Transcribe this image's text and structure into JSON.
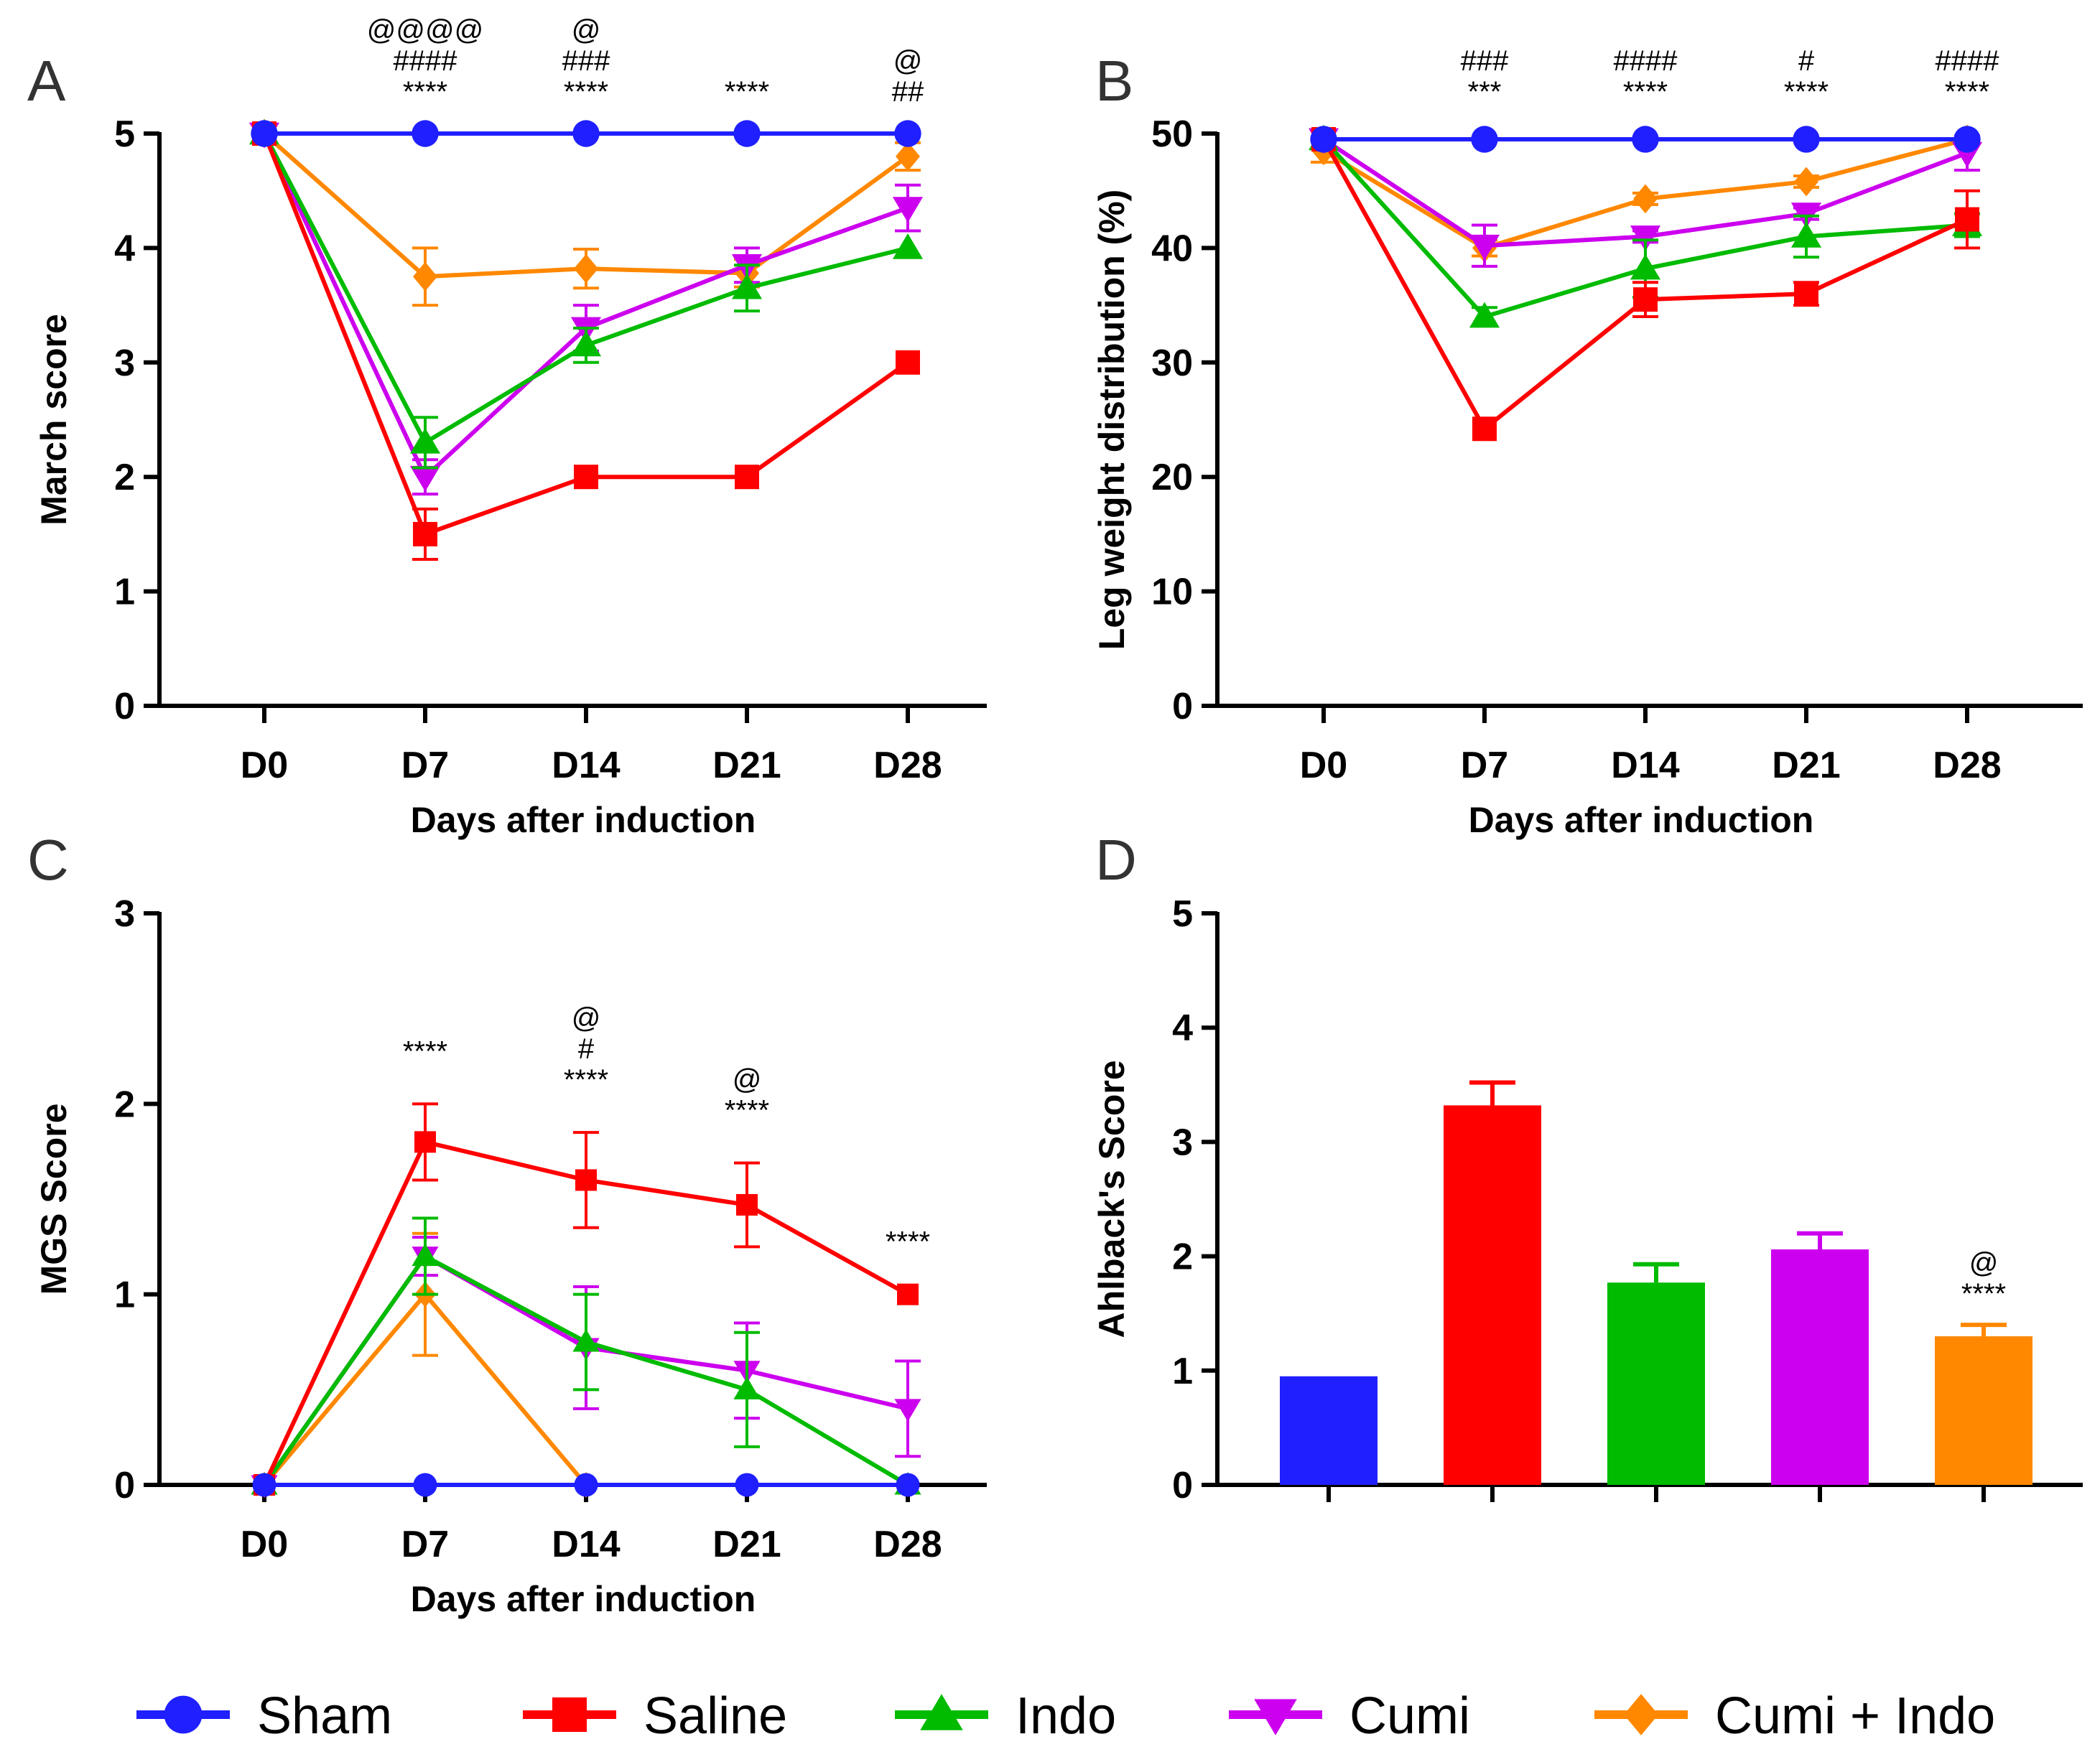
{
  "figure": {
    "legend": [
      {
        "name": "Sham",
        "color": "#1f1fff",
        "marker": "circle"
      },
      {
        "name": "Saline",
        "color": "#ff0000",
        "marker": "square"
      },
      {
        "name": "Indo",
        "color": "#00bb00",
        "marker": "triangle-up"
      },
      {
        "name": "Cumi",
        "color": "#cc00ee",
        "marker": "triangle-down"
      },
      {
        "name": "Cumi + Indo",
        "color": "#ff8800",
        "marker": "diamond"
      }
    ]
  },
  "chart_data": [
    {
      "panel": "A",
      "type": "line",
      "categories": [
        "D0",
        "D7",
        "D14",
        "D21",
        "D28"
      ],
      "xlabel": "Days after induction",
      "ylabel": "March score",
      "ylim": [
        0,
        5
      ],
      "yticks": [
        0,
        1,
        2,
        3,
        4,
        5
      ],
      "series": [
        {
          "name": "Sham",
          "values": [
            5,
            5,
            5,
            5,
            5
          ],
          "errors": [
            0,
            0,
            0,
            0,
            0
          ]
        },
        {
          "name": "Saline",
          "values": [
            5,
            1.5,
            2,
            2,
            3
          ],
          "errors": [
            0,
            0.22,
            0,
            0,
            0
          ]
        },
        {
          "name": "Indo",
          "values": [
            5,
            2.3,
            3.15,
            3.65,
            4
          ],
          "errors": [
            0,
            0.22,
            0.15,
            0.2,
            0
          ]
        },
        {
          "name": "Cumi",
          "values": [
            5,
            2.0,
            3.3,
            3.85,
            4.35
          ],
          "errors": [
            0,
            0.15,
            0.2,
            0.15,
            0.2
          ]
        },
        {
          "name": "Cumi + Indo",
          "values": [
            5,
            3.75,
            3.82,
            3.78,
            4.8
          ],
          "errors": [
            0,
            0.25,
            0.17,
            0.12,
            0.12
          ]
        }
      ],
      "annotations": [
        {
          "category": "D7",
          "lines": [
            "@@@@",
            "####",
            "****"
          ]
        },
        {
          "category": "D14",
          "lines": [
            "@",
            "###",
            "****"
          ]
        },
        {
          "category": "D21",
          "lines": [
            "****"
          ]
        },
        {
          "category": "D28",
          "lines": [
            "@",
            "##"
          ]
        }
      ]
    },
    {
      "panel": "B",
      "type": "line",
      "categories": [
        "D0",
        "D7",
        "D14",
        "D21",
        "D28"
      ],
      "xlabel": "Days after induction",
      "ylabel": "Leg weight distribution (%)",
      "ylim": [
        0,
        50
      ],
      "yticks": [
        0,
        10,
        20,
        30,
        40,
        50
      ],
      "series": [
        {
          "name": "Sham",
          "values": [
            49.5,
            49.5,
            49.5,
            49.5,
            49.5
          ],
          "errors": [
            0,
            0,
            0,
            0,
            0
          ]
        },
        {
          "name": "Saline",
          "values": [
            49.5,
            24.2,
            35.5,
            36,
            42.5
          ],
          "errors": [
            0,
            0,
            1.5,
            1,
            2.5
          ]
        },
        {
          "name": "Indo",
          "values": [
            49.5,
            34,
            38.2,
            41,
            42
          ],
          "errors": [
            0,
            0.8,
            2.5,
            1.8,
            1
          ]
        },
        {
          "name": "Cumi",
          "values": [
            49.5,
            40.2,
            41,
            43,
            48.3
          ],
          "errors": [
            0,
            1.8,
            0.5,
            0.5,
            1.5
          ]
        },
        {
          "name": "Cumi + Indo",
          "values": [
            48.5,
            40,
            44.3,
            45.8,
            49.5
          ],
          "errors": [
            1,
            0.7,
            0.5,
            0.5,
            0
          ]
        }
      ],
      "annotations": [
        {
          "category": "D7",
          "lines": [
            "###",
            "***"
          ]
        },
        {
          "category": "D14",
          "lines": [
            "####",
            "****"
          ]
        },
        {
          "category": "D21",
          "lines": [
            "#",
            "****"
          ]
        },
        {
          "category": "D28",
          "lines": [
            "####",
            "****"
          ]
        }
      ]
    },
    {
      "panel": "C",
      "type": "line",
      "categories": [
        "D0",
        "D7",
        "D14",
        "D21",
        "D28"
      ],
      "xlabel": "Days after induction",
      "ylabel": "MGS Score",
      "ylim": [
        0,
        3
      ],
      "yticks": [
        0,
        1,
        2,
        3
      ],
      "series": [
        {
          "name": "Sham",
          "values": [
            0,
            0,
            0,
            0,
            0
          ],
          "errors": [
            0,
            0,
            0,
            0,
            0
          ]
        },
        {
          "name": "Saline",
          "values": [
            0,
            1.8,
            1.6,
            1.47,
            1.0
          ],
          "errors": [
            0,
            0.2,
            0.25,
            0.22,
            0
          ]
        },
        {
          "name": "Indo",
          "values": [
            0,
            1.2,
            0.75,
            0.5,
            0
          ],
          "errors": [
            0,
            0.2,
            0.25,
            0.3,
            0
          ]
        },
        {
          "name": "Cumi",
          "values": [
            0,
            1.2,
            0.72,
            0.6,
            0.4
          ],
          "errors": [
            0,
            0.1,
            0.32,
            0.25,
            0.25
          ]
        },
        {
          "name": "Cumi + Indo",
          "values": [
            0,
            1.0,
            0,
            null,
            null
          ],
          "errors": [
            0,
            0.32,
            0,
            0,
            0
          ]
        }
      ],
      "annotations": [
        {
          "category": "D7",
          "lines": [
            "****"
          ]
        },
        {
          "category": "D14",
          "lines": [
            "@",
            "#",
            "****"
          ]
        },
        {
          "category": "D21",
          "lines": [
            "@",
            "****"
          ]
        },
        {
          "category": "D28",
          "lines": [
            "****"
          ]
        }
      ]
    },
    {
      "panel": "D",
      "type": "bar",
      "categories": [
        "Sham",
        "Saline",
        "Indo",
        "Cumi",
        "Cumi + Indo"
      ],
      "ylabel": "Ahlback's Score",
      "ylim": [
        0,
        5
      ],
      "yticks": [
        0,
        1,
        2,
        3,
        4,
        5
      ],
      "values": [
        0.95,
        3.32,
        1.77,
        2.06,
        1.3
      ],
      "errors": [
        0,
        0.2,
        0.16,
        0.14,
        0.1
      ],
      "annotations": [
        {
          "category": "Cumi + Indo",
          "lines": [
            "@",
            "****"
          ]
        }
      ]
    }
  ]
}
